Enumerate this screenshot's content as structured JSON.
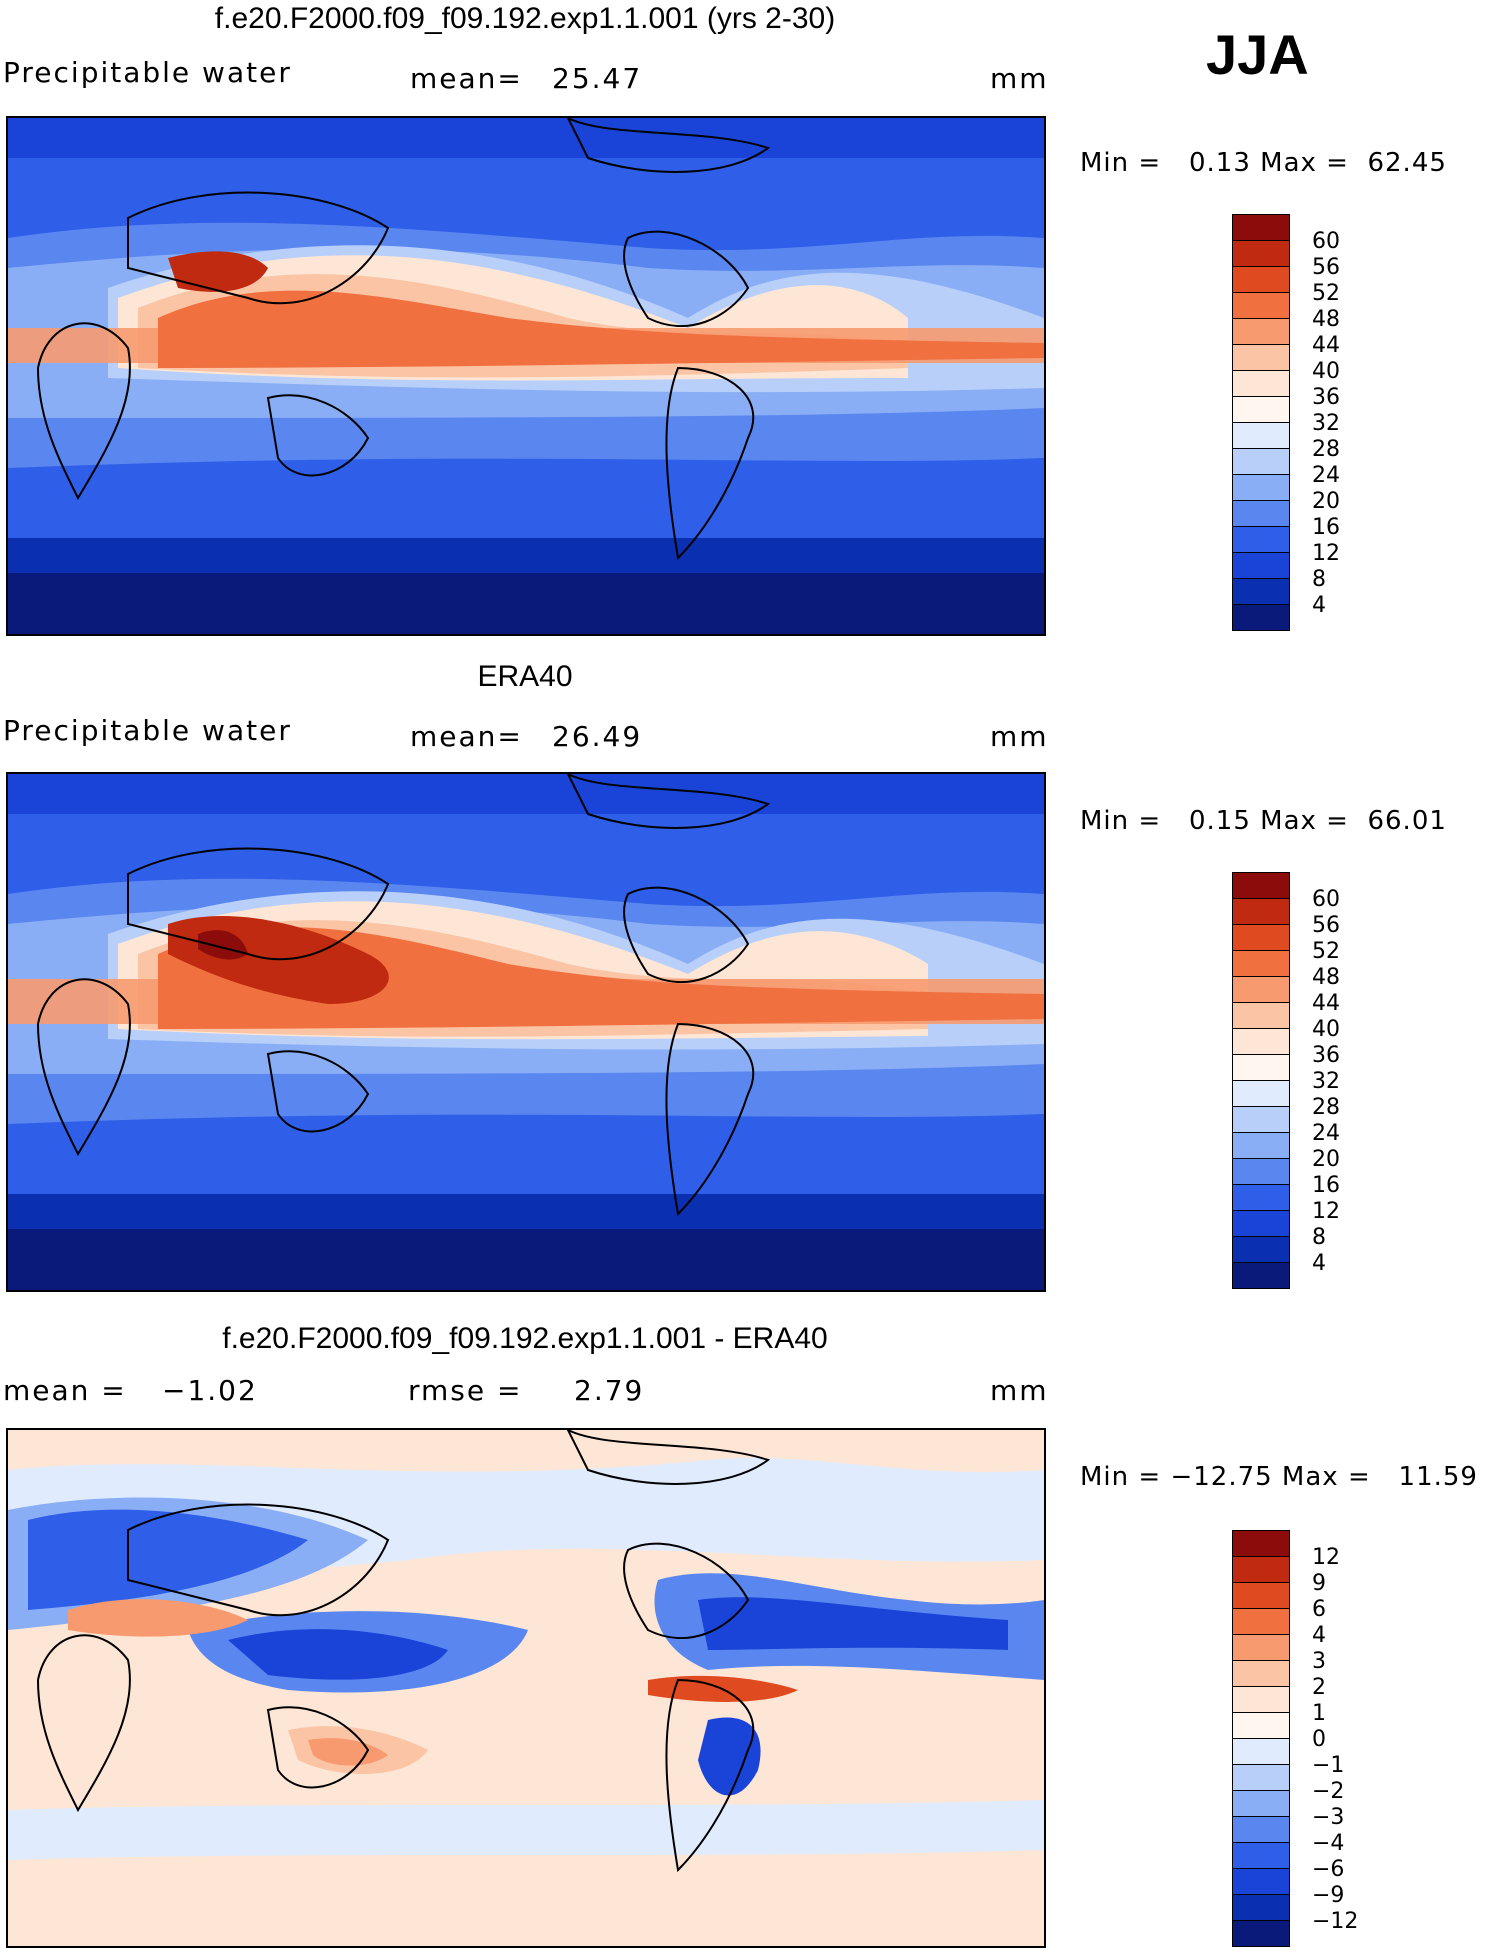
{
  "season": "JJA",
  "panels": [
    {
      "title": "f.e20.F2000.f09_f09.192.exp1.1.001 (yrs 2-30)",
      "left_label": "Precipitable water",
      "mid_label": "mean=",
      "mid_value": "25.47",
      "unit": "mm",
      "minmax": "Min =   0.13 Max =  62.45",
      "colorbar_labels": [
        "60",
        "56",
        "52",
        "48",
        "44",
        "40",
        "36",
        "32",
        "28",
        "24",
        "20",
        "16",
        "12",
        "8",
        "4"
      ]
    },
    {
      "title": "ERA40",
      "left_label": "Precipitable water",
      "mid_label": "mean=",
      "mid_value": "26.49",
      "unit": "mm",
      "minmax": "Min =   0.15 Max =  66.01",
      "colorbar_labels": [
        "60",
        "56",
        "52",
        "48",
        "44",
        "40",
        "36",
        "32",
        "28",
        "24",
        "20",
        "16",
        "12",
        "8",
        "4"
      ]
    },
    {
      "title": "f.e20.F2000.f09_f09.192.exp1.1.001 - ERA40",
      "left_label": "mean =",
      "left_value": "−1.02",
      "mid_label": "rmse =",
      "mid_value": "2.79",
      "unit": "mm",
      "minmax": "Min = −12.75 Max =   11.59",
      "colorbar_labels": [
        "12",
        "9",
        "6",
        "4",
        "3",
        "2",
        "1",
        "0",
        "−1",
        "−2",
        "−3",
        "−4",
        "−6",
        "−9",
        "−12"
      ]
    }
  ],
  "colors": {
    "abs_scale": [
      "#0a1a7a",
      "#0a2fb0",
      "#1a44d8",
      "#2f5ee8",
      "#5a86f0",
      "#8aaef5",
      "#b8cffa",
      "#e0ecfd",
      "#fde6d6",
      "#fbc4a4",
      "#f79a70",
      "#f07040",
      "#e04a20",
      "#c02a10",
      "#8c0c0c"
    ],
    "diff_scale": [
      "#0a1a7a",
      "#0a2fb0",
      "#1a44d8",
      "#2f5ee8",
      "#5a86f0",
      "#8aaef5",
      "#b8cffa",
      "#e0ecfd",
      "#fde6d6",
      "#fbc4a4",
      "#f79a70",
      "#f07040",
      "#e04a20",
      "#c02a10",
      "#8c0c0c",
      "#8c0c0c"
    ]
  }
}
